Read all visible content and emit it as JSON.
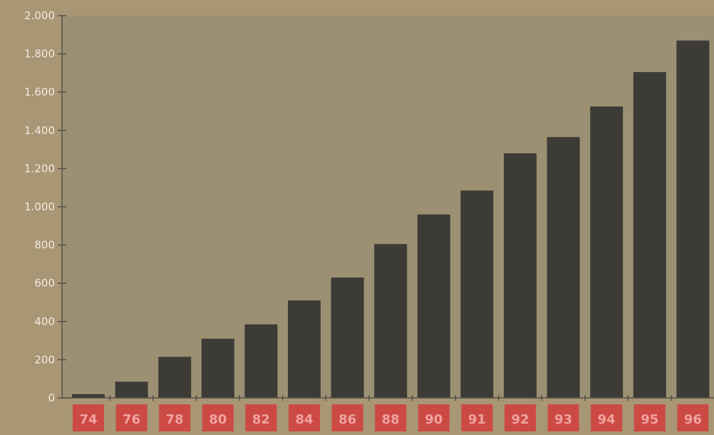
{
  "colors": {
    "page": "#a89674",
    "plot_area": "#9c9073",
    "bar": "#3d3b36",
    "axis": "#54504a",
    "tick_label": "#f0ebdf",
    "category_box": "#cc4a44",
    "category_text": "#f0a2a0"
  },
  "chart_data": {
    "type": "bar",
    "title": "",
    "xlabel": "",
    "ylabel": "",
    "ylim": [
      0,
      2000
    ],
    "yticks": [
      0,
      200,
      400,
      600,
      800,
      1000,
      1200,
      1400,
      1600,
      1800,
      2000
    ],
    "ytick_labels": [
      "0",
      "200",
      "400",
      "600",
      "800",
      "1.000",
      "1.200",
      "1.400",
      "1.600",
      "1.800",
      "2.000"
    ],
    "grid": false,
    "legend": "none",
    "categories": [
      "74",
      "76",
      "78",
      "80",
      "82",
      "84",
      "86",
      "88",
      "90",
      "91",
      "92",
      "93",
      "94",
      "95",
      "96"
    ],
    "values": [
      20,
      85,
      215,
      310,
      385,
      510,
      630,
      805,
      960,
      1085,
      1280,
      1365,
      1525,
      1705,
      1870
    ]
  }
}
